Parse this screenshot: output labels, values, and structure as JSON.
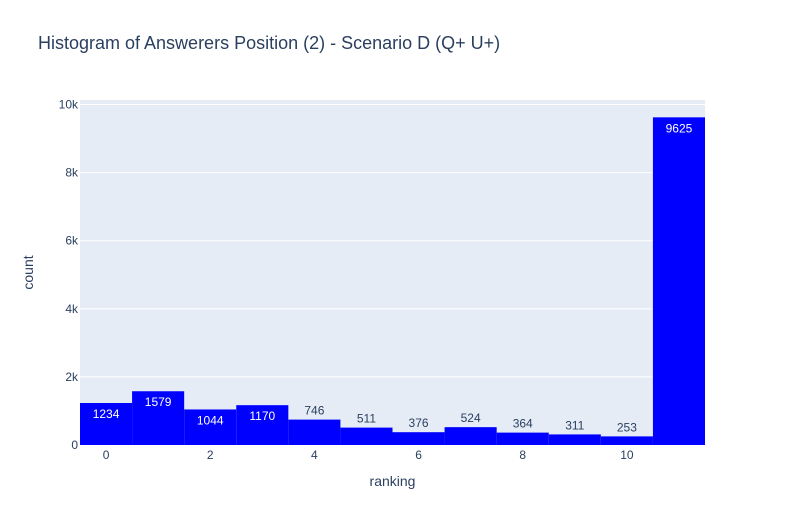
{
  "chart_data": {
    "type": "bar",
    "title": "Histogram of Answerers Position (2) - Scenario D (Q+ U+)",
    "xlabel": "ranking",
    "ylabel": "count",
    "x": [
      0,
      1,
      2,
      3,
      4,
      5,
      6,
      7,
      8,
      9,
      10,
      11
    ],
    "values": [
      1234,
      1579,
      1044,
      1170,
      746,
      511,
      376,
      524,
      364,
      311,
      253,
      9625
    ],
    "value_labels": [
      "1234",
      "1579",
      "1044",
      "1170",
      "746",
      "511",
      "376",
      "524",
      "364",
      "311",
      "253",
      "9625"
    ],
    "xlim": [
      -0.5,
      11.5
    ],
    "ylim": [
      0,
      10134
    ],
    "xticks": [
      0,
      2,
      4,
      6,
      8,
      10
    ],
    "xtick_labels": [
      "0",
      "2",
      "4",
      "6",
      "8",
      "10"
    ],
    "yticks": [
      0,
      2000,
      4000,
      6000,
      8000,
      10000
    ],
    "ytick_labels": [
      "0",
      "2k",
      "4k",
      "6k",
      "8k",
      "10k"
    ],
    "bar_color": "#0000ff",
    "plot_bg": "#e5ecf6",
    "grid": true
  }
}
